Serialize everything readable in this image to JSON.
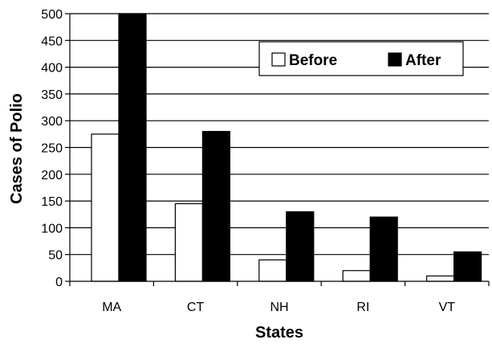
{
  "chart_data": {
    "type": "bar",
    "categories": [
      "MA",
      "CT",
      "NH",
      "RI",
      "VT"
    ],
    "series": [
      {
        "name": "Before",
        "values": [
          275,
          145,
          40,
          20,
          10
        ],
        "color": "#ffffff"
      },
      {
        "name": "After",
        "values": [
          500,
          280,
          130,
          120,
          55
        ],
        "color": "#000000"
      }
    ],
    "xlabel": "States",
    "ylabel": "Cases of Polio",
    "ylim": [
      0,
      500
    ],
    "yticks": [
      0,
      50,
      100,
      150,
      200,
      250,
      300,
      350,
      400,
      450,
      500
    ],
    "grid": true,
    "legend_position": "top-right"
  }
}
